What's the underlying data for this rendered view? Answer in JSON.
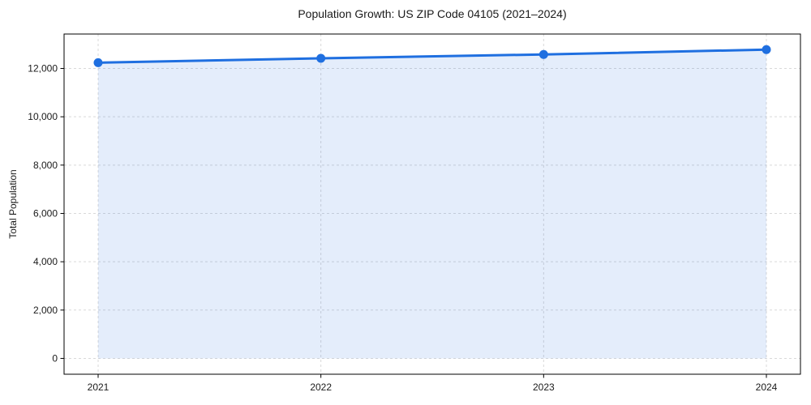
{
  "chart_data": {
    "type": "line",
    "title": "Population Growth: US ZIP Code 04105 (2021–2024)",
    "xlabel": "",
    "ylabel": "Total Population",
    "x": [
      2021,
      2022,
      2023,
      2024
    ],
    "x_tick_labels": [
      "2021",
      "2022",
      "2023",
      "2024"
    ],
    "series": [
      {
        "name": "Total Population",
        "values": [
          12240,
          12420,
          12580,
          12780
        ]
      }
    ],
    "y_ticks": [
      0,
      2000,
      4000,
      6000,
      8000,
      10000,
      12000
    ],
    "y_tick_labels": [
      "0",
      "2,000",
      "4,000",
      "6,000",
      "8,000",
      "10,000",
      "12,000"
    ],
    "ylim": [
      -655,
      13425
    ],
    "grid": "dashed-both-axes",
    "legend": "none",
    "area_fill_to_zero": true,
    "marker": "circle",
    "colors": {
      "line": "#1f6fe0",
      "marker": "#1f6fe0",
      "fill": "#1f6fe0",
      "fill_opacity": 0.12,
      "grid": "#d9d9d9",
      "axis": "#000000",
      "text": "#1a1a1a",
      "background": "#ffffff"
    }
  }
}
